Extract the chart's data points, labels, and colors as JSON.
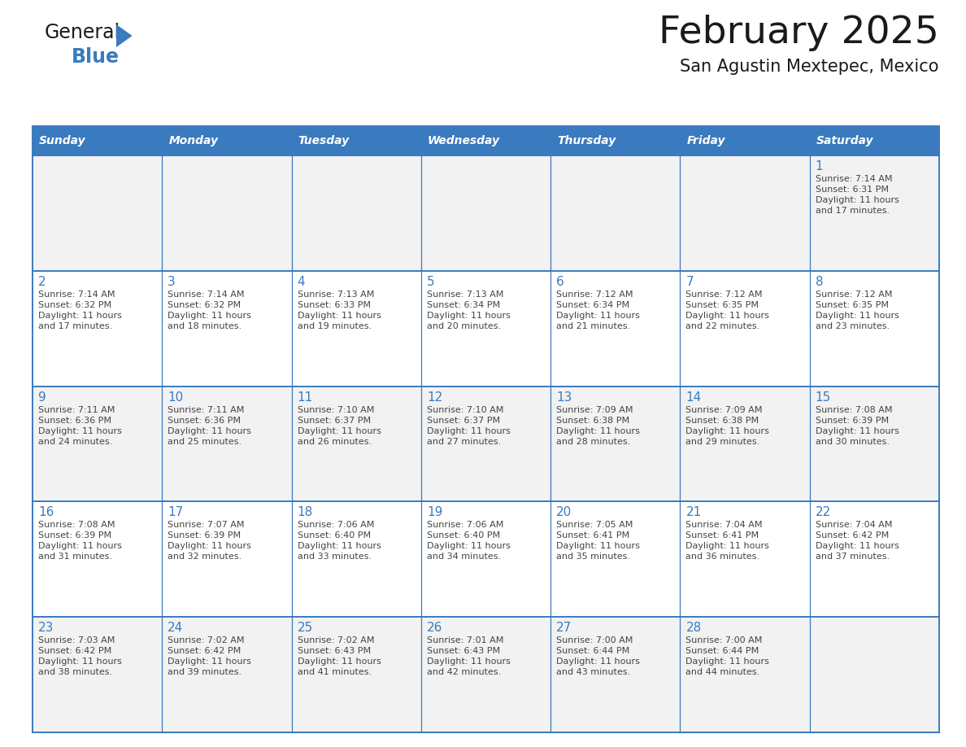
{
  "title": "February 2025",
  "subtitle": "San Agustin Mextepec, Mexico",
  "days_of_week": [
    "Sunday",
    "Monday",
    "Tuesday",
    "Wednesday",
    "Thursday",
    "Friday",
    "Saturday"
  ],
  "header_color": "#3a7abf",
  "header_text_color": "#ffffff",
  "border_color": "#3a7abf",
  "row_sep_color": "#3a7abf",
  "cell_bg_color": "#ffffff",
  "cell_alt_bg_color": "#f2f2f2",
  "text_color": "#444444",
  "day_num_color": "#3a7abf",
  "title_color": "#1a1a1a",
  "subtitle_color": "#1a1a1a",
  "calendar_data": [
    [
      null,
      null,
      null,
      null,
      null,
      null,
      1
    ],
    [
      2,
      3,
      4,
      5,
      6,
      7,
      8
    ],
    [
      9,
      10,
      11,
      12,
      13,
      14,
      15
    ],
    [
      16,
      17,
      18,
      19,
      20,
      21,
      22
    ],
    [
      23,
      24,
      25,
      26,
      27,
      28,
      null
    ]
  ],
  "cell_data": {
    "1": {
      "sunrise": "7:14 AM",
      "sunset": "6:31 PM",
      "daylight_hours": "11",
      "daylight_minutes": "17"
    },
    "2": {
      "sunrise": "7:14 AM",
      "sunset": "6:32 PM",
      "daylight_hours": "11",
      "daylight_minutes": "17"
    },
    "3": {
      "sunrise": "7:14 AM",
      "sunset": "6:32 PM",
      "daylight_hours": "11",
      "daylight_minutes": "18"
    },
    "4": {
      "sunrise": "7:13 AM",
      "sunset": "6:33 PM",
      "daylight_hours": "11",
      "daylight_minutes": "19"
    },
    "5": {
      "sunrise": "7:13 AM",
      "sunset": "6:34 PM",
      "daylight_hours": "11",
      "daylight_minutes": "20"
    },
    "6": {
      "sunrise": "7:12 AM",
      "sunset": "6:34 PM",
      "daylight_hours": "11",
      "daylight_minutes": "21"
    },
    "7": {
      "sunrise": "7:12 AM",
      "sunset": "6:35 PM",
      "daylight_hours": "11",
      "daylight_minutes": "22"
    },
    "8": {
      "sunrise": "7:12 AM",
      "sunset": "6:35 PM",
      "daylight_hours": "11",
      "daylight_minutes": "23"
    },
    "9": {
      "sunrise": "7:11 AM",
      "sunset": "6:36 PM",
      "daylight_hours": "11",
      "daylight_minutes": "24"
    },
    "10": {
      "sunrise": "7:11 AM",
      "sunset": "6:36 PM",
      "daylight_hours": "11",
      "daylight_minutes": "25"
    },
    "11": {
      "sunrise": "7:10 AM",
      "sunset": "6:37 PM",
      "daylight_hours": "11",
      "daylight_minutes": "26"
    },
    "12": {
      "sunrise": "7:10 AM",
      "sunset": "6:37 PM",
      "daylight_hours": "11",
      "daylight_minutes": "27"
    },
    "13": {
      "sunrise": "7:09 AM",
      "sunset": "6:38 PM",
      "daylight_hours": "11",
      "daylight_minutes": "28"
    },
    "14": {
      "sunrise": "7:09 AM",
      "sunset": "6:38 PM",
      "daylight_hours": "11",
      "daylight_minutes": "29"
    },
    "15": {
      "sunrise": "7:08 AM",
      "sunset": "6:39 PM",
      "daylight_hours": "11",
      "daylight_minutes": "30"
    },
    "16": {
      "sunrise": "7:08 AM",
      "sunset": "6:39 PM",
      "daylight_hours": "11",
      "daylight_minutes": "31"
    },
    "17": {
      "sunrise": "7:07 AM",
      "sunset": "6:39 PM",
      "daylight_hours": "11",
      "daylight_minutes": "32"
    },
    "18": {
      "sunrise": "7:06 AM",
      "sunset": "6:40 PM",
      "daylight_hours": "11",
      "daylight_minutes": "33"
    },
    "19": {
      "sunrise": "7:06 AM",
      "sunset": "6:40 PM",
      "daylight_hours": "11",
      "daylight_minutes": "34"
    },
    "20": {
      "sunrise": "7:05 AM",
      "sunset": "6:41 PM",
      "daylight_hours": "11",
      "daylight_minutes": "35"
    },
    "21": {
      "sunrise": "7:04 AM",
      "sunset": "6:41 PM",
      "daylight_hours": "11",
      "daylight_minutes": "36"
    },
    "22": {
      "sunrise": "7:04 AM",
      "sunset": "6:42 PM",
      "daylight_hours": "11",
      "daylight_minutes": "37"
    },
    "23": {
      "sunrise": "7:03 AM",
      "sunset": "6:42 PM",
      "daylight_hours": "11",
      "daylight_minutes": "38"
    },
    "24": {
      "sunrise": "7:02 AM",
      "sunset": "6:42 PM",
      "daylight_hours": "11",
      "daylight_minutes": "39"
    },
    "25": {
      "sunrise": "7:02 AM",
      "sunset": "6:43 PM",
      "daylight_hours": "11",
      "daylight_minutes": "41"
    },
    "26": {
      "sunrise": "7:01 AM",
      "sunset": "6:43 PM",
      "daylight_hours": "11",
      "daylight_minutes": "42"
    },
    "27": {
      "sunrise": "7:00 AM",
      "sunset": "6:44 PM",
      "daylight_hours": "11",
      "daylight_minutes": "43"
    },
    "28": {
      "sunrise": "7:00 AM",
      "sunset": "6:44 PM",
      "daylight_hours": "11",
      "daylight_minutes": "44"
    }
  },
  "logo_text_general": "General",
  "logo_text_blue": "Blue",
  "logo_color_general": "#1a1a1a",
  "logo_color_blue": "#3a7abf",
  "logo_triangle_color": "#3a7abf"
}
